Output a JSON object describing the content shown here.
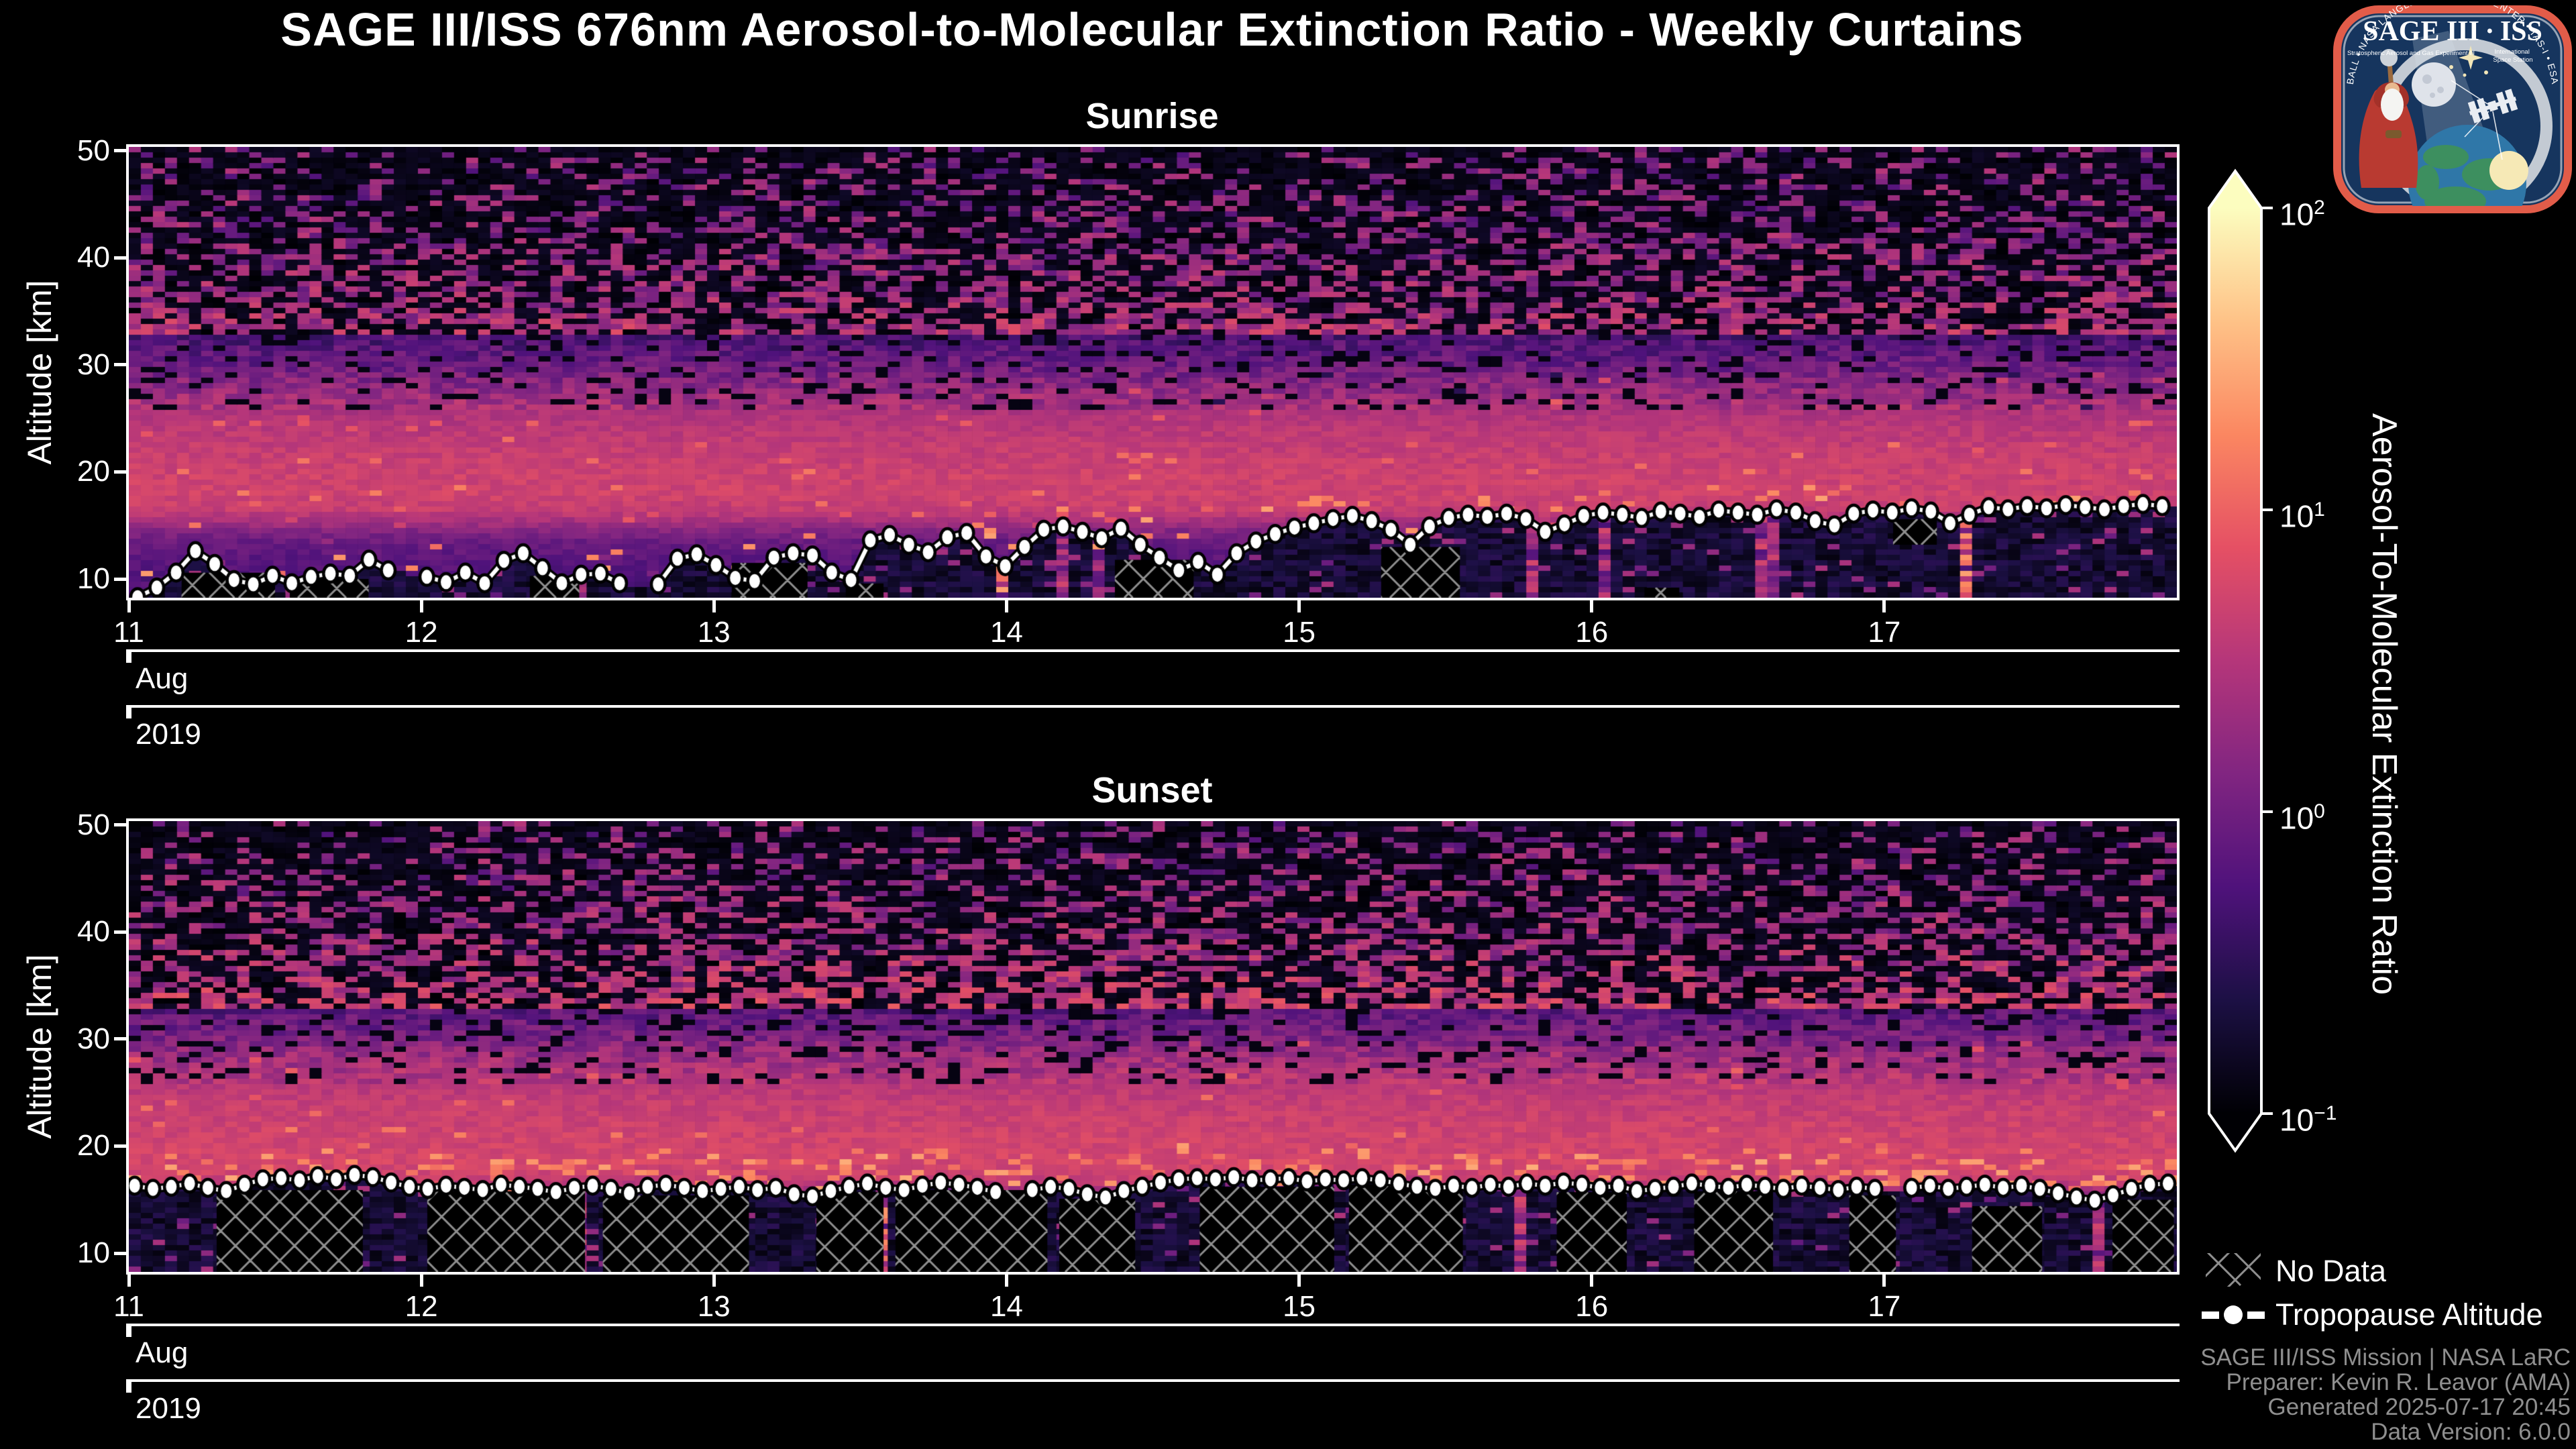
{
  "header": {
    "title": "SAGE III/ISS 676nm Aerosol-to-Molecular Extinction Ratio - Weekly Curtains"
  },
  "logo": {
    "title": "SAGE III · ISS",
    "sub_left": "Stratospheric Aerosol and Gas Experiment III",
    "sub_right_1": "International",
    "sub_right_2": "Space Station",
    "ring_text": "BALL • NASA LANGLEY RESEARCH CENTER • TAS-I • ESA"
  },
  "axis": {
    "ylabel": "Altitude [km]",
    "y_ticks": [
      "10",
      "20",
      "30",
      "40",
      "50"
    ],
    "day_ticks": [
      "11",
      "12",
      "13",
      "14",
      "15",
      "16",
      "17"
    ],
    "month": "Aug",
    "year": "2019"
  },
  "colorbar": {
    "label": "Aerosol-To-Molecular Extinction Ratio",
    "ticks": [
      {
        "base": "10",
        "exp": "2"
      },
      {
        "base": "10",
        "exp": "1"
      },
      {
        "base": "10",
        "exp": "0"
      },
      {
        "base": "10",
        "exp": "−1"
      }
    ],
    "colormap_stops": [
      [
        0,
        "#000004"
      ],
      [
        0.125,
        "#1c1044"
      ],
      [
        0.25,
        "#4f127b"
      ],
      [
        0.375,
        "#812581"
      ],
      [
        0.5,
        "#b5367a"
      ],
      [
        0.625,
        "#e55064"
      ],
      [
        0.75,
        "#fb8761"
      ],
      [
        0.875,
        "#fec287"
      ],
      [
        1,
        "#fcfdbf"
      ]
    ]
  },
  "legend": {
    "no_data": "No Data",
    "tropopause": "Tropopause Altitude"
  },
  "footer": {
    "lines": [
      "SAGE III/ISS Mission | NASA LaRC",
      "Preparer: Kevin R. Leavor (AMA)",
      "Generated 2025-07-17 20:45",
      "Data Version: 6.0.0"
    ]
  },
  "chart_data": [
    {
      "type": "heatmap",
      "title": "Sunrise",
      "x_unit": "day of August 2019",
      "x_range": [
        11,
        18
      ],
      "x_tick_days": [
        11,
        12,
        13,
        14,
        15,
        16,
        17
      ],
      "y_unit": "km",
      "y_range": [
        8.25,
        50.35
      ],
      "y_ticks": [
        10,
        20,
        30,
        40,
        50
      ],
      "value": "aerosol-to-molecular extinction ratio",
      "value_scale": "log10",
      "value_range": [
        0.1,
        100
      ],
      "profile_alt_ratio": [
        [
          50,
          0.2
        ],
        [
          44,
          0.22
        ],
        [
          40,
          0.25
        ],
        [
          36,
          0.3
        ],
        [
          33,
          0.45
        ],
        [
          30,
          0.9
        ],
        [
          28,
          1.6
        ],
        [
          26,
          2.6
        ],
        [
          24,
          3.5
        ],
        [
          22,
          4.2
        ],
        [
          20,
          4.8
        ],
        [
          18,
          5.0
        ],
        [
          16.5,
          4.2
        ],
        [
          15.5,
          2.6
        ],
        [
          14.5,
          1.4
        ],
        [
          13.5,
          0.9
        ],
        [
          12,
          0.7
        ],
        [
          10,
          0.6
        ],
        [
          8,
          0.55
        ]
      ],
      "texture": {
        "plume_prob": 0.07,
        "orange_band_prob": 0.05,
        "plume_hot_frac": 0.2
      },
      "tropopause": {
        "day_start": 11.03,
        "day_end": 17.95,
        "altitudes_km": [
          8.3,
          9.2,
          10.6,
          12.6,
          11.4,
          9.9,
          9.5,
          10.3,
          9.6,
          10.2,
          10.5,
          10.3,
          11.8,
          10.8,
          null,
          10.2,
          9.7,
          10.6,
          9.6,
          11.7,
          12.4,
          11.0,
          9.6,
          10.4,
          10.5,
          9.6,
          null,
          9.5,
          11.9,
          12.3,
          11.3,
          10.1,
          9.8,
          12.0,
          12.4,
          12.2,
          10.6,
          9.9,
          13.6,
          14.1,
          13.2,
          12.5,
          13.9,
          14.3,
          12.1,
          11.2,
          13.0,
          14.6,
          14.9,
          14.4,
          13.8,
          14.7,
          13.2,
          12.0,
          10.8,
          11.6,
          10.4,
          12.4,
          13.5,
          14.2,
          14.8,
          15.2,
          15.6,
          15.9,
          15.4,
          14.6,
          13.2,
          14.9,
          15.7,
          16.0,
          15.8,
          16.1,
          15.6,
          14.4,
          15.1,
          15.9,
          16.2,
          16.0,
          15.7,
          16.3,
          16.1,
          15.8,
          16.4,
          16.2,
          16.0,
          16.5,
          16.2,
          15.4,
          15.0,
          16.1,
          16.4,
          16.2,
          16.6,
          16.3,
          15.2,
          16.0,
          16.7,
          16.5,
          16.8,
          16.6,
          16.9,
          16.7,
          16.5,
          16.8,
          17.0,
          16.8
        ]
      },
      "no_data_regions_day_km": [
        [
          11.18,
          11.5,
          8.25,
          10.6
        ],
        [
          11.55,
          11.82,
          8.25,
          10.0
        ],
        [
          12.37,
          12.54,
          8.25,
          10.3
        ],
        [
          13.06,
          13.32,
          8.25,
          11.5
        ],
        [
          13.45,
          13.58,
          8.25,
          9.6
        ],
        [
          14.37,
          14.64,
          8.25,
          11.8
        ],
        [
          15.28,
          15.55,
          8.25,
          13.0
        ],
        [
          16.18,
          16.3,
          8.25,
          9.2
        ],
        [
          17.03,
          17.18,
          13.2,
          15.6
        ]
      ]
    },
    {
      "type": "heatmap",
      "title": "Sunset",
      "x_unit": "day of August 2019",
      "x_range": [
        11,
        18
      ],
      "x_tick_days": [
        11,
        12,
        13,
        14,
        15,
        16,
        17
      ],
      "y_unit": "km",
      "y_range": [
        8.25,
        50.35
      ],
      "y_ticks": [
        10,
        20,
        30,
        40,
        50
      ],
      "value": "aerosol-to-molecular extinction ratio",
      "value_scale": "log10",
      "value_range": [
        0.1,
        100
      ],
      "profile_alt_ratio": [
        [
          50,
          0.2
        ],
        [
          44,
          0.25
        ],
        [
          40,
          0.3
        ],
        [
          36,
          0.4
        ],
        [
          33,
          0.6
        ],
        [
          30,
          1.2
        ],
        [
          28,
          2.2
        ],
        [
          26,
          3.2
        ],
        [
          24,
          4.2
        ],
        [
          22,
          4.8
        ],
        [
          20,
          5.2
        ],
        [
          18.5,
          5.5
        ],
        [
          17.5,
          5.0
        ],
        [
          16.5,
          3.5
        ],
        [
          15.5,
          1.5
        ],
        [
          14,
          0.8
        ],
        [
          12,
          0.6
        ],
        [
          10,
          0.55
        ],
        [
          8,
          0.5
        ]
      ],
      "texture": {
        "plume_prob": 0.12,
        "orange_band_prob": 0.17,
        "plume_hot_frac": 0.3
      },
      "tropopause": {
        "day_start": 11.02,
        "day_end": 17.97,
        "altitudes_km": [
          16.3,
          16.0,
          16.2,
          16.5,
          16.1,
          15.8,
          16.4,
          16.9,
          17.0,
          16.8,
          17.2,
          16.9,
          17.3,
          17.1,
          16.6,
          16.2,
          16.0,
          16.3,
          16.1,
          15.9,
          16.4,
          16.2,
          16.0,
          15.7,
          16.1,
          16.3,
          16.0,
          15.6,
          16.2,
          16.4,
          16.1,
          15.8,
          16.0,
          16.2,
          15.9,
          16.1,
          15.5,
          15.3,
          15.8,
          16.2,
          16.5,
          16.1,
          15.9,
          16.3,
          16.6,
          16.4,
          16.1,
          15.7,
          null,
          15.9,
          16.2,
          16.0,
          15.5,
          15.2,
          15.8,
          16.2,
          16.6,
          16.9,
          17.0,
          16.9,
          17.1,
          16.8,
          16.9,
          17.0,
          16.7,
          16.9,
          16.8,
          17.0,
          16.8,
          16.5,
          16.2,
          16.0,
          16.3,
          16.1,
          16.4,
          16.2,
          16.5,
          16.3,
          16.6,
          16.4,
          16.1,
          16.3,
          15.8,
          16.0,
          16.2,
          16.5,
          16.3,
          16.1,
          16.4,
          16.2,
          16.0,
          16.3,
          16.1,
          15.9,
          16.2,
          16.0,
          null,
          16.1,
          16.3,
          16.0,
          16.2,
          16.4,
          16.1,
          16.3,
          16.0,
          15.6,
          15.2,
          14.9,
          15.4,
          16.0,
          16.4,
          16.5
        ]
      },
      "no_data_regions_day_km": [
        [
          11.3,
          11.8,
          8.25,
          15.9
        ],
        [
          12.02,
          12.56,
          8.25,
          15.8
        ],
        [
          12.62,
          13.12,
          8.25,
          15.4
        ],
        [
          13.35,
          13.58,
          8.25,
          15.7
        ],
        [
          13.62,
          14.14,
          8.25,
          15.9
        ],
        [
          14.18,
          14.44,
          8.25,
          15.1
        ],
        [
          14.66,
          15.12,
          8.25,
          16.2
        ],
        [
          15.17,
          15.56,
          8.25,
          16.4
        ],
        [
          15.88,
          16.12,
          8.25,
          15.7
        ],
        [
          16.35,
          16.62,
          8.25,
          15.8
        ],
        [
          16.88,
          17.04,
          8.25,
          15.4
        ],
        [
          17.3,
          17.54,
          8.25,
          14.4
        ],
        [
          17.78,
          17.99,
          8.25,
          15.0
        ]
      ]
    }
  ]
}
